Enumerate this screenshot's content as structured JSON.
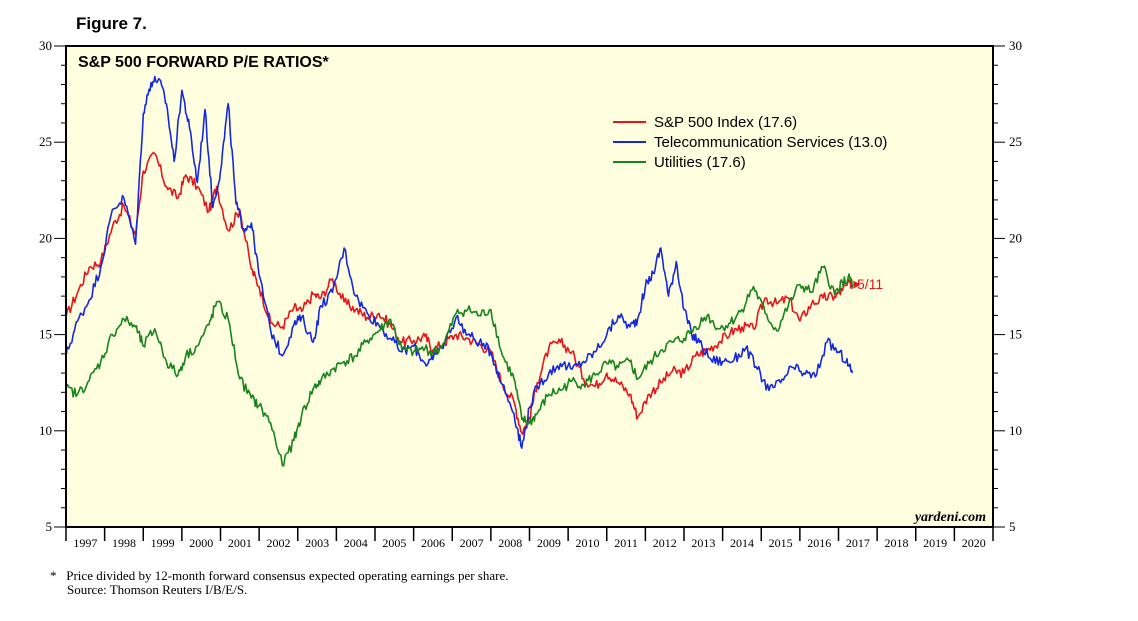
{
  "figure_label": "Figure 7.",
  "chart_data": {
    "type": "line",
    "title": "S&P 500 FORWARD P/E RATIOS*",
    "xlabel": "",
    "ylabel": "",
    "x_range": [
      1997,
      2021
    ],
    "ylim": [
      5,
      30
    ],
    "y_ticks": [
      5,
      10,
      15,
      20,
      25,
      30
    ],
    "categories": [
      "1997",
      "1998",
      "1999",
      "2000",
      "2001",
      "2002",
      "2003",
      "2004",
      "2005",
      "2006",
      "2007",
      "2008",
      "2009",
      "2010",
      "2011",
      "2012",
      "2013",
      "2014",
      "2015",
      "2016",
      "2017",
      "2018",
      "2019",
      "2020"
    ],
    "series": [
      {
        "name": "S&P 500 Index (17.6)",
        "color": "#e8141b",
        "x": [
          1997.0,
          1997.3,
          1997.6,
          1997.9,
          1998.2,
          1998.5,
          1998.8,
          1999.0,
          1999.3,
          1999.6,
          1999.9,
          2000.1,
          2000.4,
          2000.7,
          2000.9,
          2001.2,
          2001.5,
          2001.8,
          2002.0,
          2002.3,
          2002.6,
          2002.9,
          2003.1,
          2003.4,
          2003.6,
          2003.9,
          2004.2,
          2004.5,
          2004.8,
          2005.1,
          2005.4,
          2005.7,
          2006.0,
          2006.3,
          2006.5,
          2006.8,
          2007.1,
          2007.4,
          2007.7,
          2008.0,
          2008.3,
          2008.6,
          2008.8,
          2009.0,
          2009.2,
          2009.5,
          2009.8,
          2010.1,
          2010.4,
          2010.7,
          2011.0,
          2011.3,
          2011.6,
          2011.8,
          2012.1,
          2012.4,
          2012.7,
          2013.0,
          2013.3,
          2013.6,
          2013.9,
          2014.2,
          2014.5,
          2014.8,
          2015.1,
          2015.4,
          2015.7,
          2016.0,
          2016.3,
          2016.6,
          2016.9,
          2017.1,
          2017.3,
          2017.36
        ],
        "values": [
          15.9,
          17.2,
          18.5,
          18.8,
          20.6,
          21.7,
          20.2,
          23.5,
          24.4,
          22.7,
          22.1,
          23.3,
          22.7,
          21.4,
          22.7,
          20.4,
          21.5,
          18.4,
          17.5,
          15.6,
          15.4,
          16.4,
          16.2,
          17.1,
          16.9,
          17.9,
          16.7,
          16.3,
          15.9,
          16.1,
          15.5,
          14.6,
          14.7,
          14.9,
          14.2,
          14.6,
          15.0,
          14.8,
          14.5,
          14.1,
          12.4,
          11.5,
          9.9,
          10.7,
          12.5,
          14.3,
          14.6,
          14.1,
          12.7,
          12.3,
          13.0,
          12.5,
          11.9,
          10.7,
          11.9,
          12.5,
          13.1,
          13.0,
          13.9,
          14.2,
          14.6,
          15.1,
          15.4,
          15.3,
          16.9,
          16.6,
          16.9,
          15.7,
          16.6,
          16.9,
          17.0,
          17.3,
          17.7,
          17.6
        ]
      },
      {
        "name": "Telecommunication Services (13.0)",
        "color": "#1428e0",
        "x": [
          1997.0,
          1997.3,
          1997.6,
          1997.9,
          1998.2,
          1998.5,
          1998.8,
          1999.0,
          1999.2,
          1999.4,
          1999.6,
          1999.8,
          2000.0,
          2000.2,
          2000.4,
          2000.6,
          2000.8,
          2001.0,
          2001.2,
          2001.4,
          2001.6,
          2001.8,
          2002.0,
          2002.3,
          2002.6,
          2002.9,
          2003.1,
          2003.4,
          2003.6,
          2003.9,
          2004.2,
          2004.5,
          2004.8,
          2005.1,
          2005.4,
          2005.7,
          2006.0,
          2006.3,
          2006.5,
          2006.8,
          2007.1,
          2007.4,
          2007.7,
          2008.0,
          2008.3,
          2008.6,
          2008.8,
          2009.0,
          2009.2,
          2009.5,
          2009.8,
          2010.1,
          2010.4,
          2010.7,
          2011.0,
          2011.3,
          2011.6,
          2011.8,
          2012.0,
          2012.2,
          2012.4,
          2012.6,
          2012.8,
          2013.0,
          2013.2,
          2013.4,
          2013.7,
          2014.0,
          2014.3,
          2014.6,
          2014.9,
          2015.2,
          2015.5,
          2015.8,
          2016.1,
          2016.4,
          2016.7,
          2017.0,
          2017.2,
          2017.36
        ],
        "values": [
          13.9,
          15.7,
          16.8,
          18.5,
          21.5,
          22.1,
          19.7,
          26.5,
          28.1,
          28.3,
          27.0,
          24.0,
          27.7,
          25.7,
          22.9,
          26.7,
          21.6,
          23.5,
          27.0,
          21.8,
          20.5,
          20.8,
          18.1,
          15.2,
          13.9,
          15.5,
          15.9,
          14.6,
          16.5,
          17.2,
          19.5,
          17.0,
          16.1,
          15.5,
          14.8,
          14.1,
          14.4,
          13.5,
          13.7,
          14.6,
          15.9,
          15.0,
          14.6,
          14.1,
          12.4,
          10.9,
          9.1,
          11.2,
          12.3,
          13.0,
          13.5,
          13.2,
          13.6,
          14.1,
          15.0,
          16.0,
          15.4,
          15.8,
          17.5,
          18.2,
          19.5,
          17.0,
          18.8,
          16.3,
          15.0,
          14.6,
          13.7,
          13.6,
          13.7,
          14.3,
          13.2,
          12.1,
          12.5,
          13.3,
          13.0,
          12.8,
          14.6,
          14.1,
          13.6,
          13.0
        ]
      },
      {
        "name": "Utilities (17.6)",
        "color": "#17851c",
        "x": [
          1997.0,
          1997.3,
          1997.6,
          1997.9,
          1998.2,
          1998.5,
          1998.8,
          1999.0,
          1999.3,
          1999.6,
          1999.9,
          2000.1,
          2000.4,
          2000.7,
          2000.9,
          2001.2,
          2001.5,
          2001.8,
          2002.0,
          2002.3,
          2002.6,
          2002.9,
          2003.1,
          2003.4,
          2003.6,
          2003.9,
          2004.2,
          2004.5,
          2004.8,
          2005.1,
          2005.4,
          2005.7,
          2006.0,
          2006.3,
          2006.5,
          2006.8,
          2007.1,
          2007.4,
          2007.7,
          2008.0,
          2008.3,
          2008.6,
          2008.8,
          2009.0,
          2009.2,
          2009.5,
          2009.8,
          2010.1,
          2010.4,
          2010.7,
          2011.0,
          2011.3,
          2011.6,
          2011.8,
          2012.1,
          2012.4,
          2012.7,
          2013.0,
          2013.3,
          2013.6,
          2013.9,
          2014.2,
          2014.5,
          2014.8,
          2015.1,
          2015.4,
          2015.7,
          2016.0,
          2016.3,
          2016.6,
          2016.9,
          2017.1,
          2017.3,
          2017.36
        ],
        "values": [
          12.2,
          11.9,
          12.6,
          13.6,
          15.0,
          15.8,
          15.4,
          14.4,
          15.3,
          13.6,
          12.9,
          13.9,
          14.4,
          15.5,
          16.7,
          15.8,
          12.7,
          11.7,
          11.3,
          10.4,
          8.2,
          9.5,
          10.8,
          12.2,
          12.6,
          13.2,
          13.6,
          13.9,
          14.7,
          15.2,
          15.8,
          14.2,
          14.1,
          14.3,
          14.0,
          14.6,
          16.1,
          16.3,
          16.0,
          16.3,
          13.9,
          12.7,
          10.6,
          10.4,
          10.9,
          11.9,
          12.1,
          12.6,
          12.4,
          12.9,
          13.5,
          13.3,
          13.6,
          12.7,
          13.5,
          14.2,
          14.6,
          14.8,
          15.4,
          16.0,
          15.3,
          15.6,
          16.3,
          17.5,
          16.1,
          15.2,
          16.5,
          17.6,
          17.2,
          18.5,
          17.1,
          17.7,
          17.9,
          17.6
        ]
      }
    ],
    "annotation": "5/11",
    "legend_position": "top-right",
    "credit": "yardeni.com"
  },
  "footnote": {
    "marker": "*",
    "text": "Price divided by 12-month forward consensus expected operating earnings per share.",
    "source": "Source: Thomson Reuters I/B/E/S."
  },
  "colors": {
    "plot_background": "#ffffe0",
    "sp500": "#e8141b",
    "telecom": "#1428e0",
    "utilities": "#17851c"
  }
}
